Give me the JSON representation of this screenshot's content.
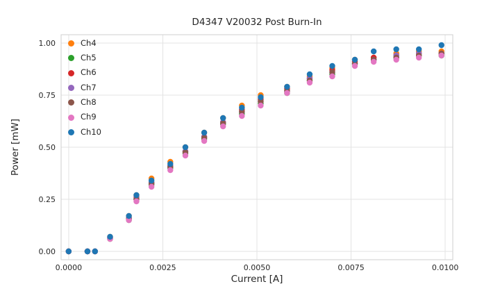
{
  "colors": {
    "grid": "#e3e3e3",
    "spine": "#cfcfcf",
    "text": "#262626",
    "background": "#ffffff"
  },
  "chart_data": {
    "type": "scatter",
    "title": "D4347 V20032 Post Burn-In",
    "xlabel": "Current [A]",
    "ylabel": "Power [mW]",
    "grid": true,
    "legend_position": "upper-left",
    "xlim": [
      -0.0002,
      0.0102
    ],
    "ylim": [
      -0.04,
      1.04
    ],
    "x_ticks": [
      0.0,
      0.0025,
      0.005,
      0.0075,
      0.01
    ],
    "x_tick_labels": [
      "0.0000",
      "0.0025",
      "0.0050",
      "0.0075",
      "0.0100"
    ],
    "y_ticks": [
      0.0,
      0.25,
      0.5,
      0.75,
      1.0
    ],
    "y_tick_labels": [
      "0.00",
      "0.25",
      "0.50",
      "0.75",
      "1.00"
    ],
    "x": [
      0.0,
      0.0005,
      0.0007,
      0.0011,
      0.0016,
      0.0018,
      0.0022,
      0.0027,
      0.0031,
      0.0036,
      0.0041,
      0.0046,
      0.0051,
      0.0058,
      0.0064,
      0.007,
      0.0076,
      0.0081,
      0.0087,
      0.0093,
      0.0099
    ],
    "series": [
      {
        "name": "Ch4",
        "color": "#ff7f0e",
        "y": [
          0.0,
          0.0,
          0.0,
          0.07,
          0.17,
          0.27,
          0.35,
          0.43,
          0.5,
          0.57,
          0.64,
          0.7,
          0.75,
          0.79,
          0.84,
          0.88,
          0.92,
          0.93,
          0.95,
          0.96,
          0.96
        ]
      },
      {
        "name": "Ch5",
        "color": "#2ca02c",
        "y": [
          0.0,
          0.0,
          0.0,
          0.06,
          0.15,
          0.25,
          0.32,
          0.4,
          0.47,
          0.54,
          0.61,
          0.66,
          0.71,
          0.76,
          0.82,
          0.85,
          0.9,
          0.92,
          0.93,
          0.94,
          0.94
        ]
      },
      {
        "name": "Ch6",
        "color": "#d62728",
        "y": [
          0.0,
          0.0,
          0.0,
          0.065,
          0.16,
          0.26,
          0.33,
          0.41,
          0.48,
          0.55,
          0.62,
          0.68,
          0.73,
          0.78,
          0.83,
          0.87,
          0.91,
          0.93,
          0.94,
          0.95,
          0.95
        ]
      },
      {
        "name": "Ch7",
        "color": "#9467bd",
        "y": [
          0.0,
          0.0,
          0.0,
          0.065,
          0.16,
          0.255,
          0.33,
          0.41,
          0.48,
          0.55,
          0.62,
          0.67,
          0.72,
          0.77,
          0.83,
          0.86,
          0.9,
          0.92,
          0.94,
          0.95,
          0.95
        ]
      },
      {
        "name": "Ch8",
        "color": "#8c564b",
        "y": [
          0.0,
          0.0,
          0.0,
          0.06,
          0.155,
          0.25,
          0.325,
          0.405,
          0.475,
          0.545,
          0.615,
          0.67,
          0.72,
          0.77,
          0.82,
          0.86,
          0.9,
          0.92,
          0.93,
          0.94,
          0.95
        ]
      },
      {
        "name": "Ch9",
        "color": "#e377c2",
        "y": [
          0.0,
          0.0,
          0.0,
          0.06,
          0.15,
          0.24,
          0.31,
          0.39,
          0.46,
          0.53,
          0.6,
          0.65,
          0.7,
          0.76,
          0.81,
          0.84,
          0.89,
          0.91,
          0.92,
          0.93,
          0.94
        ]
      },
      {
        "name": "Ch10",
        "color": "#1f77b4",
        "y": [
          0.0,
          0.0,
          0.0,
          0.07,
          0.17,
          0.27,
          0.34,
          0.42,
          0.5,
          0.57,
          0.64,
          0.69,
          0.74,
          0.79,
          0.85,
          0.89,
          0.92,
          0.96,
          0.97,
          0.97,
          0.99
        ]
      }
    ]
  }
}
